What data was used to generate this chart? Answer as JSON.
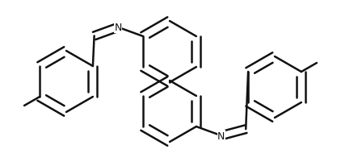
{
  "bg_color": "#ffffff",
  "bond_color": "#111111",
  "bond_width": 1.8,
  "dbo": 0.055,
  "figsize": [
    4.22,
    2.07
  ],
  "dpi": 100,
  "r": 0.4,
  "xlim": [
    0.0,
    4.22
  ],
  "ylim": [
    0.0,
    2.07
  ]
}
